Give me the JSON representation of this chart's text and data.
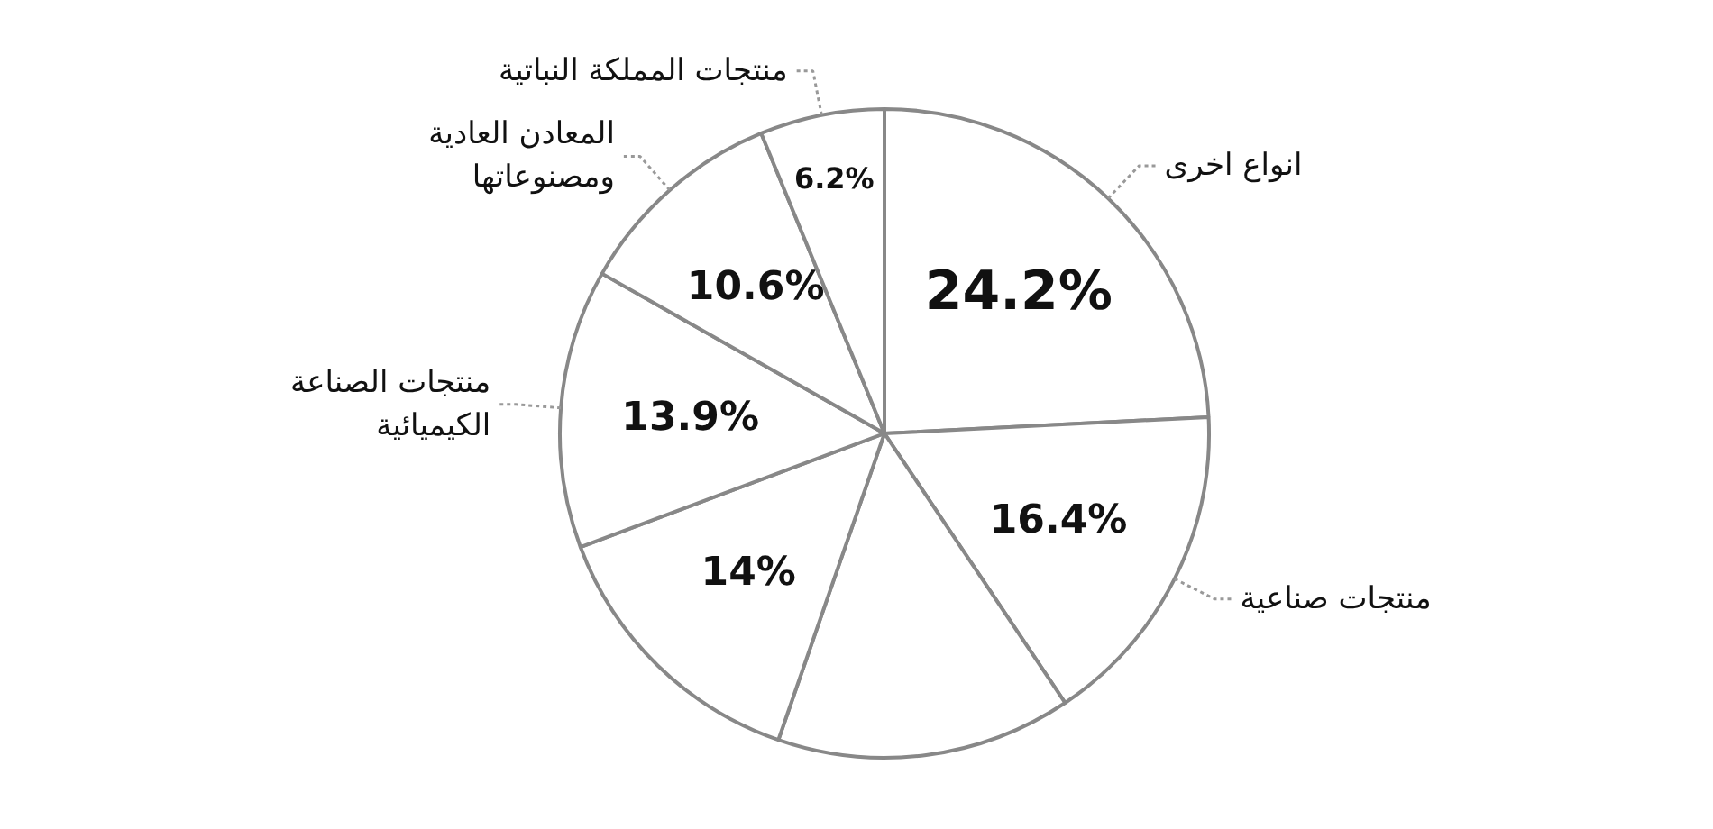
{
  "chart_data": {
    "type": "pie",
    "categories": [
      "انواع اخرى",
      "منتجات صناعية",
      null,
      null,
      "منتجات الصناعة\nالكيميائية",
      "المعادن العادية\nومصنوعاتها",
      "منتجات المملكة النباتية"
    ],
    "values": [
      24.2,
      16.4,
      14.7,
      14,
      13.9,
      10.6,
      6.2
    ],
    "colors": [
      "#ffffff",
      "#ffffff",
      "#ffffff",
      "#ffffff",
      "#ffffff",
      "#ffffff",
      "#ffffff"
    ],
    "value_labels": [
      "24.2%",
      "16.4%",
      null,
      "14%",
      "13.9%",
      "10.6%",
      "6.2%"
    ]
  }
}
